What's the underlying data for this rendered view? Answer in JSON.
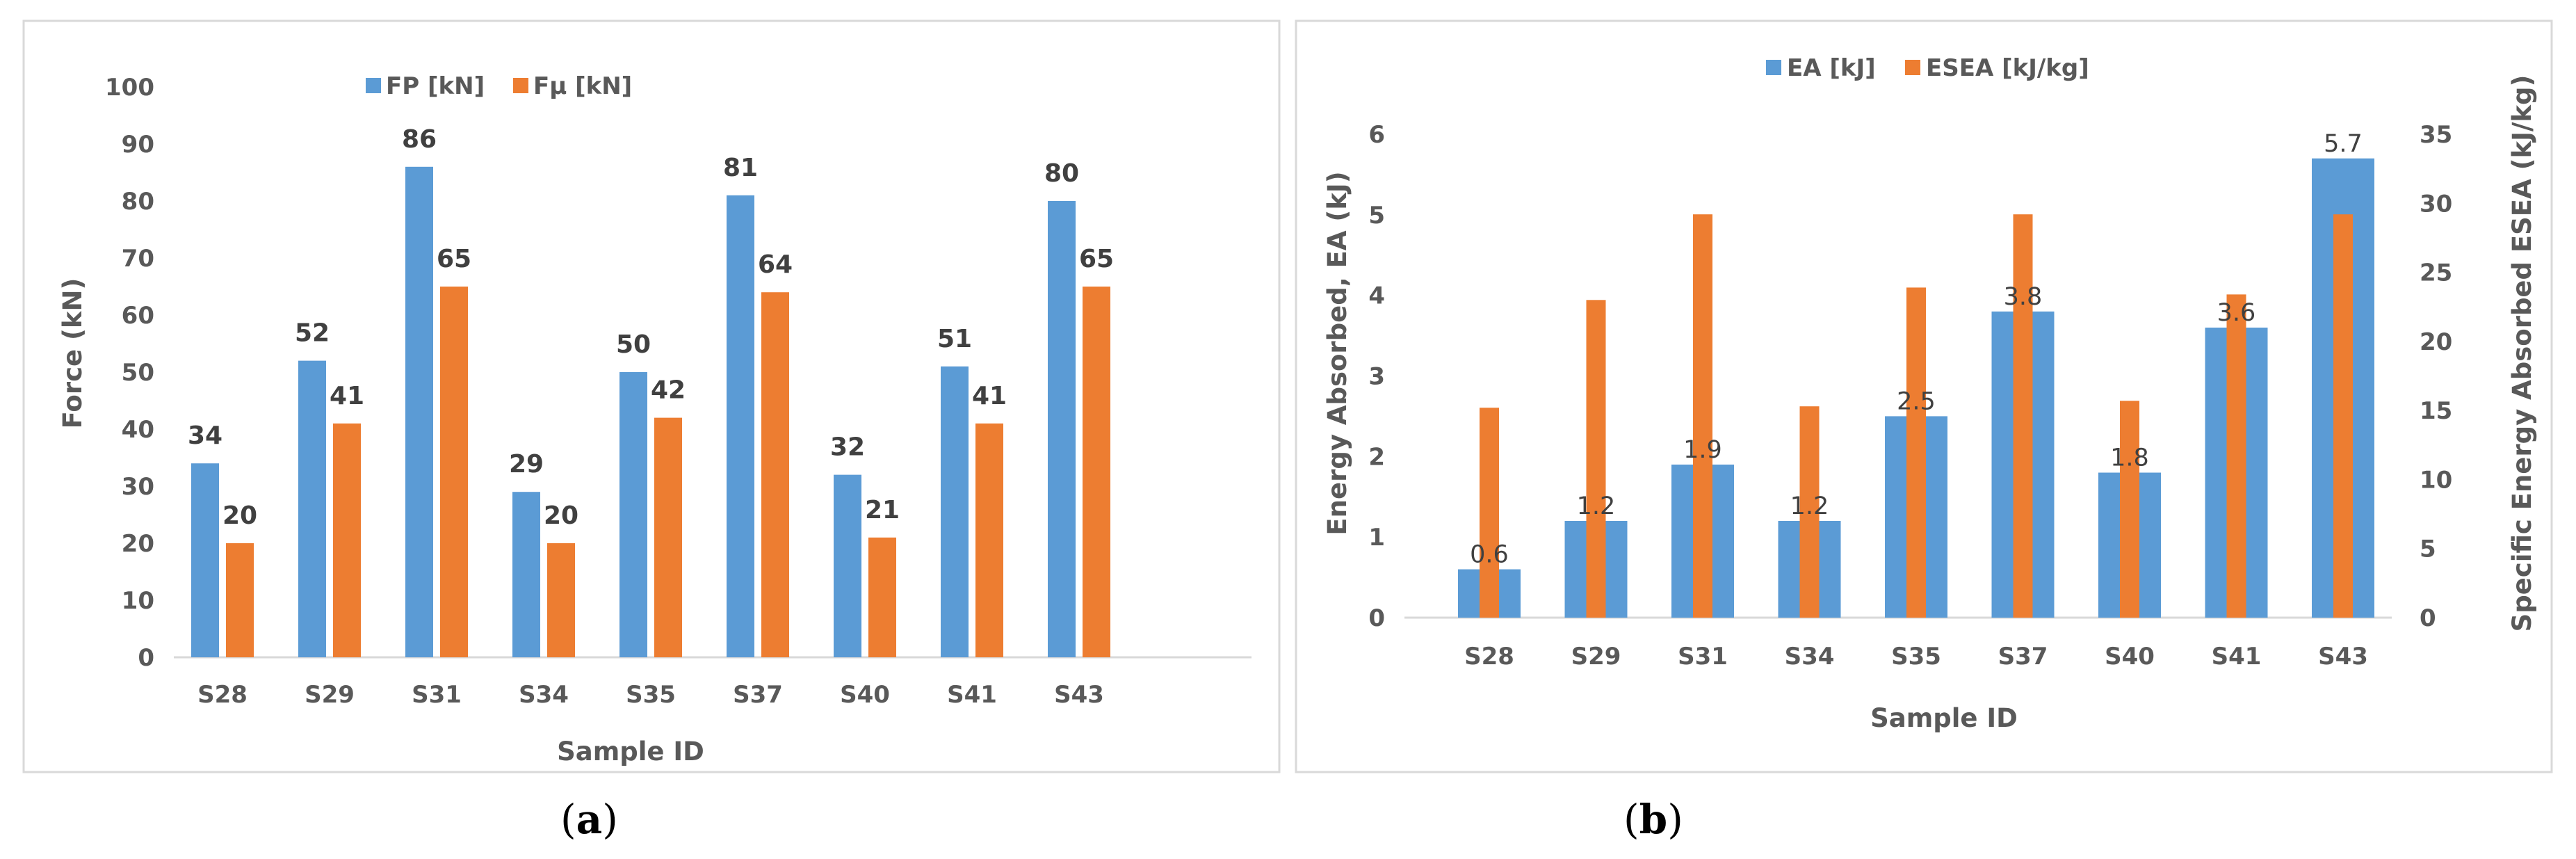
{
  "chart_data": [
    {
      "type": "bar",
      "panel": "a",
      "caption_letter": "a",
      "categories": [
        "S28",
        "S29",
        "S31",
        "S34",
        "S35",
        "S37",
        "S40",
        "S41",
        "S43"
      ],
      "series": [
        {
          "name": "FP [kN]",
          "color": "#5b9bd5",
          "values": [
            34,
            52,
            86,
            29,
            50,
            81,
            32,
            51,
            80
          ]
        },
        {
          "name": "Fμ [kN]",
          "color": "#ed7d31",
          "values": [
            20,
            41,
            65,
            20,
            42,
            64,
            21,
            41,
            65
          ]
        }
      ],
      "data_labels": [
        [
          "34",
          "52",
          "86",
          "29",
          "50",
          "81",
          "32",
          "51",
          "80"
        ],
        [
          "20",
          "41",
          "65",
          "20",
          "42",
          "64",
          "21",
          "41",
          "65"
        ]
      ],
      "xlabel": "Sample ID",
      "ylabel": "Force (kN)",
      "ylim": [
        0,
        100
      ],
      "yticks": [
        "0",
        "10",
        "20",
        "30",
        "40",
        "50",
        "60",
        "70",
        "80",
        "90",
        "100"
      ],
      "grid": false,
      "legend": "top-center"
    },
    {
      "type": "bar",
      "panel": "b",
      "caption_letter": "b",
      "categories": [
        "S28",
        "S29",
        "S31",
        "S34",
        "S35",
        "S37",
        "S40",
        "S41",
        "S43"
      ],
      "series": [
        {
          "name": "EA [kJ]",
          "color": "#5b9bd5",
          "axis": "left",
          "values": [
            0.6,
            1.2,
            1.9,
            1.2,
            2.5,
            3.8,
            1.8,
            3.6,
            5.7
          ]
        },
        {
          "name": "ESEA [kJ/kg]",
          "color": "#ed7d31",
          "axis": "right",
          "values": [
            15.2,
            23,
            29.2,
            15.3,
            23.9,
            29.2,
            15.7,
            23.4,
            29.2
          ]
        }
      ],
      "data_labels": [
        [
          "0.6",
          "1.2",
          "1.9",
          "1.2",
          "2.5",
          "3.8",
          "1.8",
          "3.6",
          "5.7"
        ]
      ],
      "xlabel": "Sample ID",
      "ylabel": "Energy Absorbed, EA (kJ)",
      "y2label": "Specific Energy Absorbed ESEA (kJ/kg)",
      "ylim": [
        0,
        6
      ],
      "y2lim": [
        0,
        35
      ],
      "yticks": [
        "0",
        "1",
        "2",
        "3",
        "4",
        "5",
        "6"
      ],
      "y2ticks": [
        "0",
        "5",
        "10",
        "15",
        "20",
        "25",
        "30",
        "35"
      ],
      "grid": false,
      "legend": "top-center"
    }
  ]
}
